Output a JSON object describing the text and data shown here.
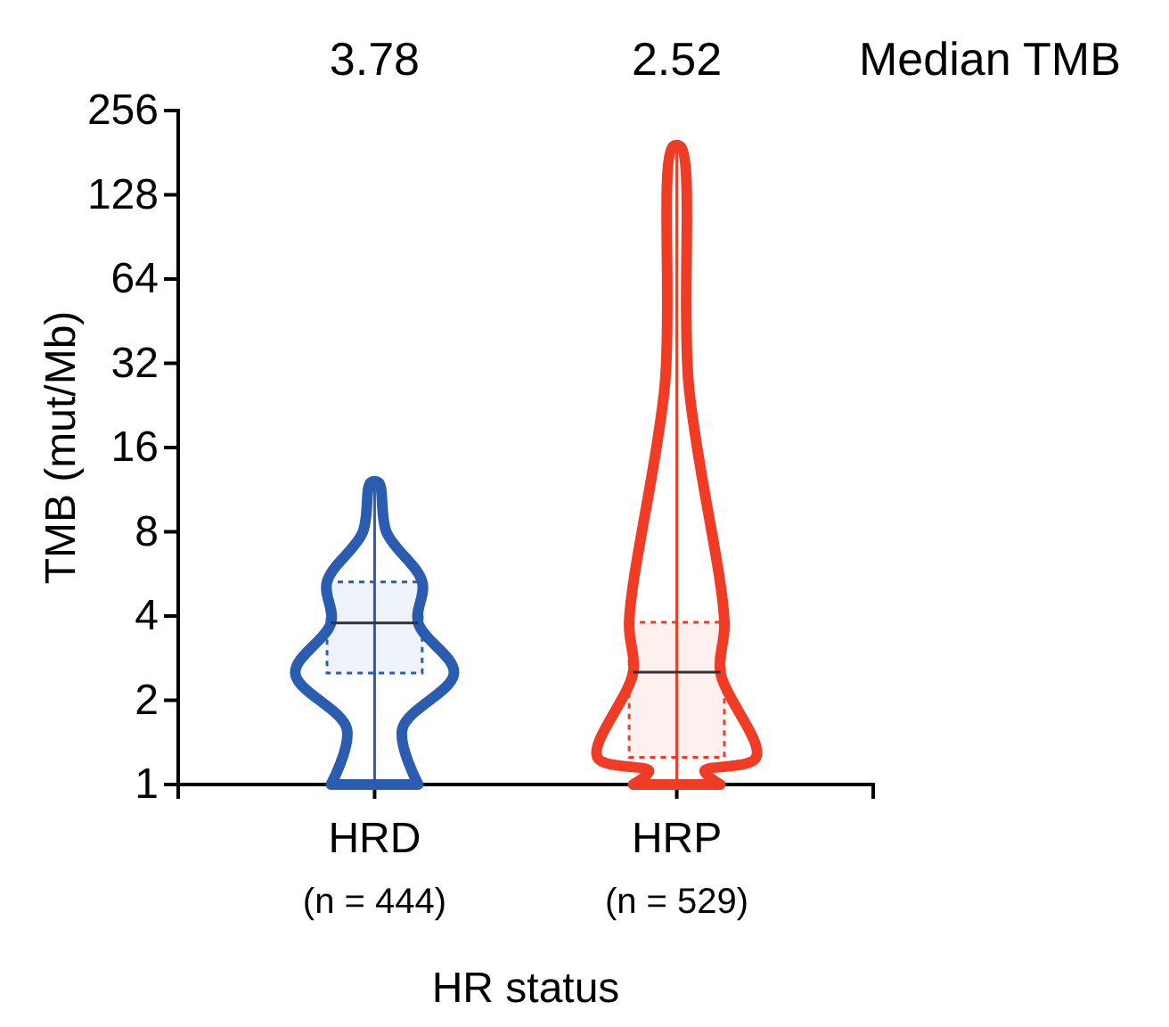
{
  "chart_data": {
    "type": "box",
    "categories": [
      "HRD (n = 444)",
      "HRP (n = 529)"
    ],
    "boxes": [
      {
        "low": 1,
        "q1": 2.5,
        "median": 3.78,
        "q3": 5.3,
        "high": 12
      },
      {
        "low": 1,
        "q1": 1.25,
        "median": 2.52,
        "q3": 3.8,
        "high": 190
      }
    ],
    "colors": [
      "#2a5db0",
      "#f03c24"
    ],
    "value_labels": [
      "3.78",
      "2.52"
    ],
    "annotations": [
      "Median TMB"
    ],
    "xlabel": "HR status",
    "ylabel": "TMB (mut/Mb)",
    "log": true,
    "ylim": [
      1,
      256
    ],
    "yticks": [
      1,
      2,
      4,
      8,
      16,
      32,
      64,
      128,
      256
    ],
    "grid": false
  }
}
